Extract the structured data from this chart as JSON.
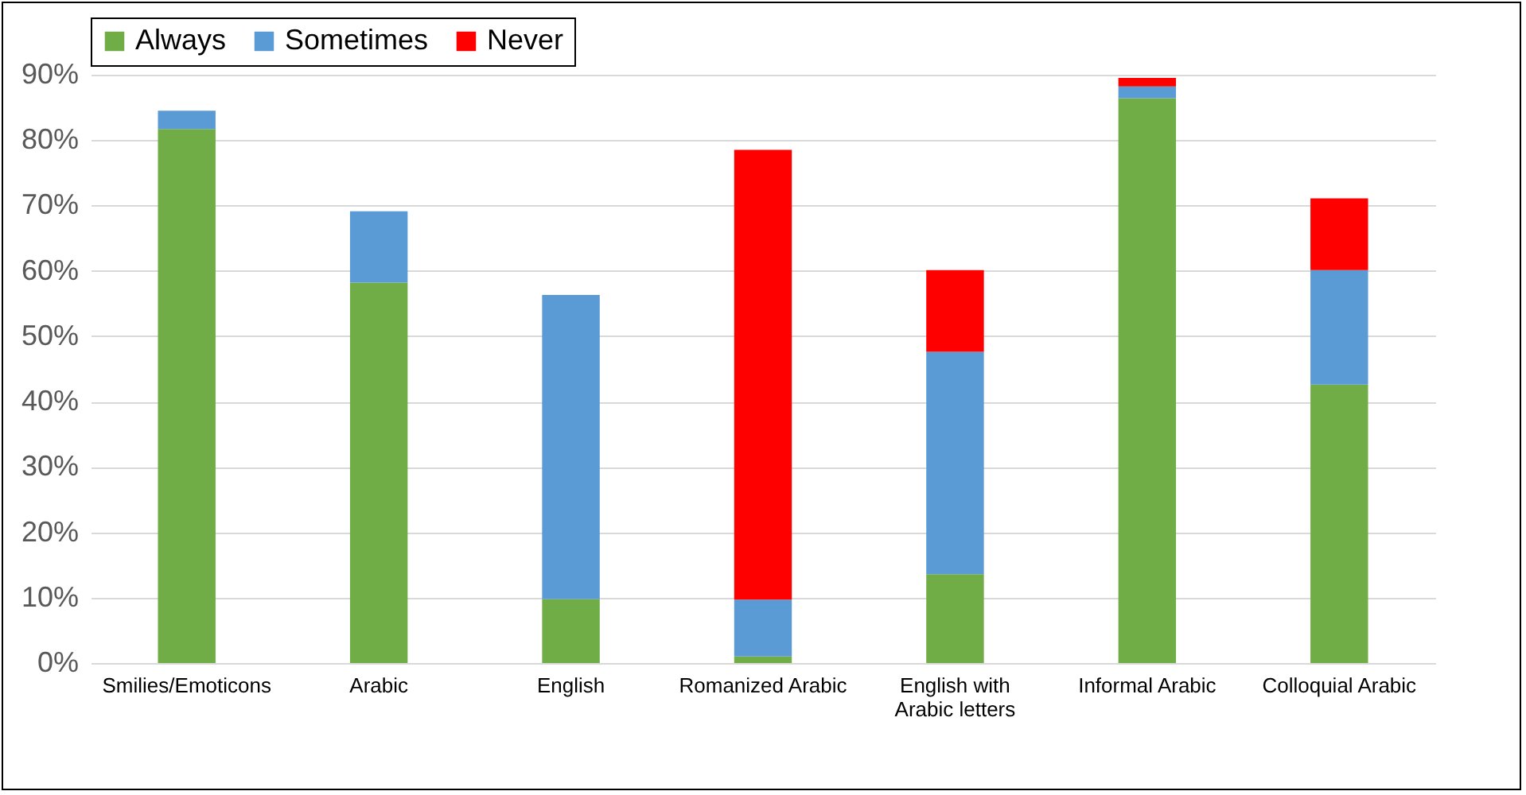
{
  "chart_data": {
    "type": "bar",
    "stacked": true,
    "categories": [
      "Smilies/Emoticons",
      "Arabic",
      "English",
      "Romanized Arabic",
      "English with\nArabic letters",
      "Informal Arabic",
      "Colloquial Arabic"
    ],
    "series": [
      {
        "name": "Always",
        "color": "#70ad47",
        "values": [
          81.7,
          58.2,
          9.8,
          1.0,
          13.6,
          86.4,
          42.6
        ]
      },
      {
        "name": "Sometimes",
        "color": "#5b9bd5",
        "values": [
          2.8,
          10.9,
          46.5,
          8.7,
          34.0,
          1.8,
          17.5
        ]
      },
      {
        "name": "Never",
        "color": "#ff0000",
        "values": [
          null,
          null,
          null,
          68.8,
          12.5,
          1.3,
          11.0
        ]
      }
    ],
    "ylim": [
      0,
      90
    ],
    "yticks": [
      {
        "value": 0,
        "label": "0%"
      },
      {
        "value": 10,
        "label": "10%"
      },
      {
        "value": 20,
        "label": "20%"
      },
      {
        "value": 30,
        "label": "30%"
      },
      {
        "value": 40,
        "label": "40%"
      },
      {
        "value": 50,
        "label": "50%"
      },
      {
        "value": 60,
        "label": "60%"
      },
      {
        "value": 70,
        "label": "70%"
      },
      {
        "value": 80,
        "label": "80%"
      },
      {
        "value": 90,
        "label": "90%"
      }
    ],
    "grid": "y",
    "legend": "top"
  }
}
